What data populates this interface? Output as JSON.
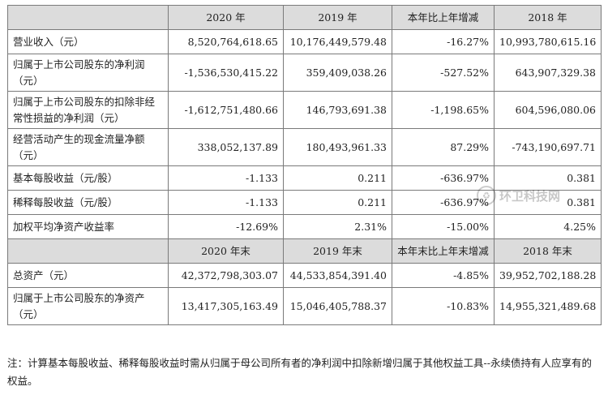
{
  "header1": [
    "2020 年",
    "2019 年",
    "本年比上年增减",
    "2018 年"
  ],
  "rows1": [
    [
      "营业收入（元）",
      "8,520,764,618.65",
      "10,176,449,579.48",
      "-16.27%",
      "10,993,780,615.16"
    ],
    [
      "归属于上市公司股东的净利润（元）",
      "-1,536,530,415.22",
      "359,409,038.26",
      "-527.52%",
      "643,907,329.38"
    ],
    [
      "归属于上市公司股东的扣除非经常性损益的净利润（元）",
      "-1,612,751,480.66",
      "146,793,691.38",
      "-1,198.65%",
      "604,596,080.06"
    ],
    [
      "经营活动产生的现金流量净额（元）",
      "338,052,137.89",
      "180,493,961.33",
      "87.29%",
      "-743,190,697.71"
    ],
    [
      "基本每股收益（元/股）",
      "-1.133",
      "0.211",
      "-636.97%",
      "0.381"
    ],
    [
      "稀释每股收益（元/股）",
      "-1.133",
      "0.211",
      "-636.97%",
      "0.381"
    ],
    [
      "加权平均净资产收益率",
      "-12.69%",
      "2.31%",
      "-15.00%",
      "4.25%"
    ]
  ],
  "header2": [
    "2020 年末",
    "2019 年末",
    "本年末比上年末增减",
    "2018 年末"
  ],
  "rows2": [
    [
      "总资产（元）",
      "42,372,798,303.07",
      "44,533,854,391.40",
      "-4.85%",
      "39,952,702,188.28"
    ],
    [
      "归属于上市公司股东的净资产（元）",
      "13,417,305,163.49",
      "15,046,405,788.37",
      "-10.83%",
      "14,955,321,489.68"
    ]
  ],
  "note": "注：计算基本每股收益、稀释每股收益时需从归属于母公司所有者的净利润中扣除新增归属于其他权益工具--永续债持有人应享有的权益。",
  "watermark": "环卫科技网"
}
